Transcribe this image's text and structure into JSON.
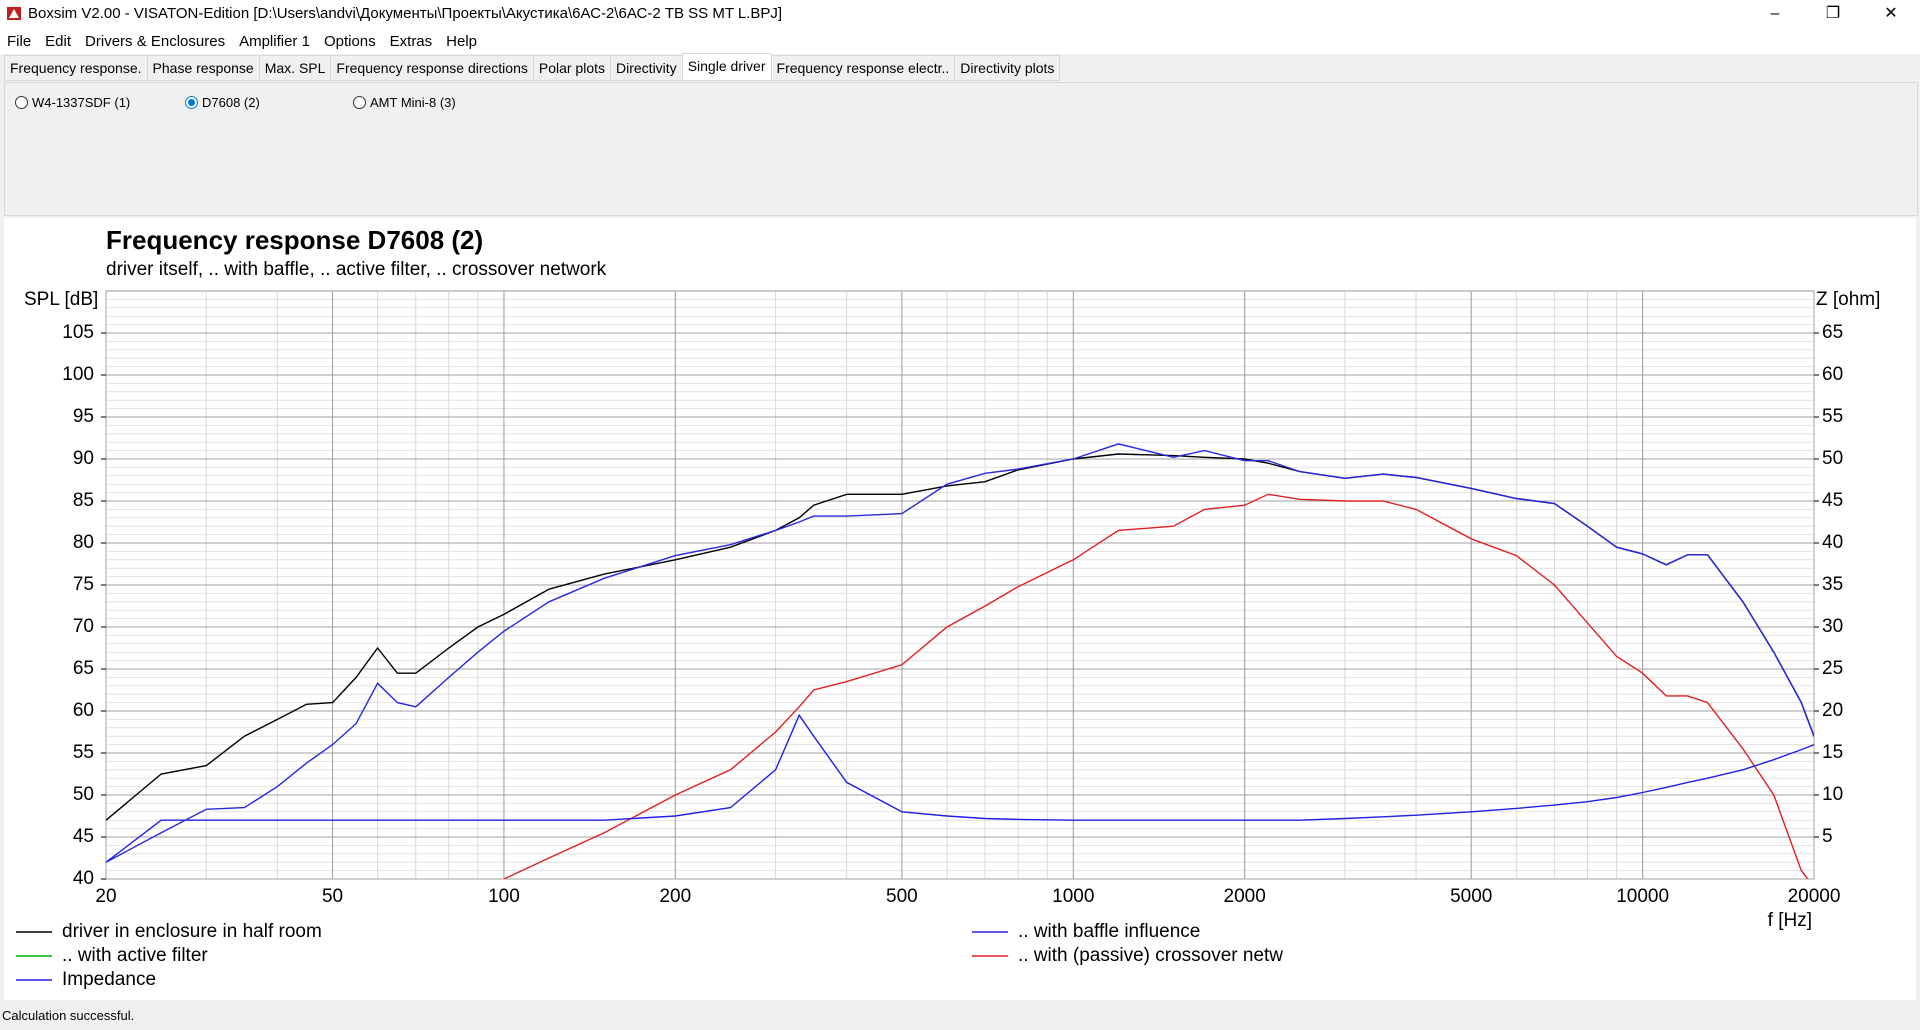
{
  "window": {
    "title": "Boxsim V2.00 - VISATON-Edition [D:\\Users\\andvi\\Документы\\Проекты\\Акустика\\6АС-2\\6АС-2 TB SS MT L.BPJ]"
  },
  "menu": [
    "File",
    "Edit",
    "Drivers & Enclosures",
    "Amplifier 1",
    "Options",
    "Extras",
    "Help"
  ],
  "tabs": {
    "items": [
      "Frequency response.",
      "Phase response",
      "Max. SPL",
      "Frequency response directions",
      "Polar plots",
      "Directivity",
      "Single driver",
      "Frequency response electr..",
      "Directivity plots"
    ],
    "active": 6
  },
  "drivers": [
    {
      "label": "W4-1337SDF (1)",
      "checked": false
    },
    {
      "label": "D7608 (2)",
      "checked": true
    },
    {
      "label": "AMT Mini-8 (3)",
      "checked": false
    }
  ],
  "status": "Calculation successful.",
  "chart_data": {
    "type": "line",
    "title": "Frequency response D7608 (2)",
    "subtitle": "driver itself, .. with baffle, .. active filter, .. crossover network",
    "ylabel": "SPL [dB]",
    "y2label": "Z [ohm]",
    "xlabel": "f [Hz]",
    "xscale": "log",
    "grid": true,
    "xlim": [
      20,
      20000
    ],
    "xticks": [
      20,
      50,
      100,
      200,
      500,
      1000,
      2000,
      5000,
      10000,
      20000
    ],
    "ylim": [
      40,
      110
    ],
    "yticks": [
      40,
      45,
      50,
      55,
      60,
      65,
      70,
      75,
      80,
      85,
      90,
      95,
      100,
      105
    ],
    "y2lim": [
      0,
      70
    ],
    "y2ticks": [
      5,
      10,
      15,
      20,
      25,
      30,
      35,
      40,
      45,
      50,
      55,
      60,
      65
    ],
    "x": [
      20,
      25,
      30,
      35,
      40,
      45,
      50,
      55,
      60,
      65,
      70,
      80,
      90,
      100,
      120,
      150,
      200,
      250,
      300,
      330,
      350,
      400,
      500,
      600,
      700,
      800,
      1000,
      1200,
      1500,
      1700,
      2000,
      2200,
      2500,
      3000,
      3500,
      4000,
      5000,
      6000,
      7000,
      8000,
      9000,
      10000,
      11000,
      12000,
      13000,
      15000,
      17000,
      19000,
      20000
    ],
    "series": [
      {
        "name": "driver in enclosure in half room",
        "color": "#000000",
        "values": [
          47,
          52.5,
          53.5,
          57,
          59,
          60.8,
          61,
          64,
          67.5,
          64.5,
          64.5,
          67.5,
          70,
          71.5,
          74.5,
          76.3,
          78,
          79.5,
          81.5,
          83,
          84.5,
          85.8,
          85.8,
          86.8,
          87.3,
          88.7,
          90,
          90.6,
          90.4,
          90.2,
          90,
          89.5,
          88.5,
          87.7,
          88.2,
          87.8,
          86.5,
          85.3,
          84.7,
          82,
          79.5,
          78.7,
          77.4,
          78.6,
          78.6,
          73,
          67,
          61,
          57
        ]
      },
      {
        "name": ".. with baffle influence",
        "color": "#2828e0",
        "values": [
          42,
          45.5,
          48.3,
          48.5,
          51,
          53.8,
          56,
          58.5,
          63.3,
          61,
          60.5,
          64,
          67,
          69.5,
          73,
          75.8,
          78.5,
          79.8,
          81.5,
          82.5,
          83.2,
          83.2,
          83.5,
          87,
          88.3,
          88.8,
          90,
          91.8,
          90.2,
          91,
          89.8,
          89.8,
          88.5,
          87.7,
          88.2,
          87.8,
          86.5,
          85.3,
          84.7,
          82,
          79.5,
          78.7,
          77.4,
          78.6,
          78.6,
          73,
          67,
          61,
          57
        ]
      },
      {
        "name": ".. with active filter",
        "color": "#00b000",
        "values": [
          null,
          null,
          null,
          null,
          null,
          null,
          null,
          null,
          null,
          null,
          null,
          null,
          null,
          null,
          null,
          null,
          null,
          null,
          null,
          null,
          null,
          null,
          null,
          null,
          null,
          null,
          null,
          null,
          null,
          null,
          null,
          null,
          null,
          null,
          null,
          null,
          null,
          null,
          null,
          null,
          null,
          null,
          null,
          null,
          null,
          null,
          null,
          null,
          null
        ]
      },
      {
        "name": ".. with (passive) crossover netw",
        "color": "#e02020",
        "values": [
          null,
          null,
          null,
          null,
          null,
          null,
          null,
          null,
          null,
          null,
          null,
          null,
          null,
          40,
          42.5,
          45.5,
          50,
          53,
          57.5,
          60.5,
          62.5,
          63.5,
          65.5,
          70,
          72.5,
          74.8,
          78,
          81.5,
          82,
          84,
          84.5,
          85.8,
          85.2,
          85,
          85,
          84,
          80.5,
          78.5,
          75,
          70.5,
          66.5,
          64.5,
          61.8,
          61.8,
          61,
          55.5,
          50,
          41,
          39
        ]
      },
      {
        "name": "Impedance",
        "color": "#2020e8",
        "axis": "y2",
        "values": [
          2,
          7,
          7,
          7,
          7,
          7,
          7,
          7,
          7,
          7,
          7,
          7,
          7,
          7,
          7,
          7,
          7.5,
          8.5,
          13,
          19.5,
          17,
          11.5,
          8,
          7.5,
          7.2,
          7.1,
          7,
          7,
          7,
          7,
          7,
          7,
          7,
          7.2,
          7.4,
          7.6,
          8,
          8.4,
          8.8,
          9.2,
          9.7,
          10.3,
          10.9,
          11.5,
          12,
          13,
          14.2,
          15.4,
          16
        ]
      }
    ]
  }
}
